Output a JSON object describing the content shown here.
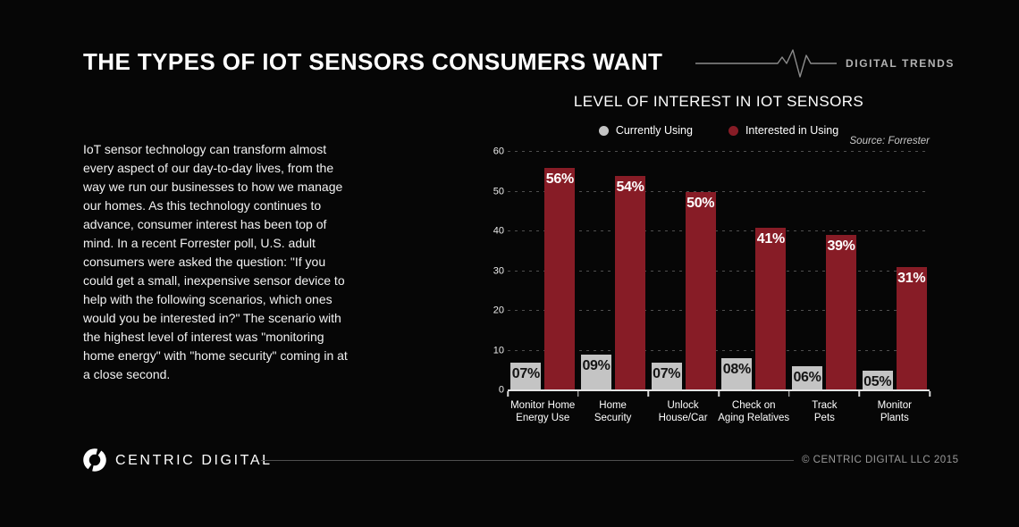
{
  "header": {
    "title": "THE TYPES OF IOT SENSORS CONSUMERS WANT",
    "brand_label": "DIGITAL TRENDS"
  },
  "intro": {
    "text": "IoT sensor technology can transform almost every aspect of our day-to-day lives, from the way we run our businesses to how we manage our homes. As this technology continues to advance, consumer interest has been top of mind. In a recent Forrester poll, U.S. adult consumers were asked the question: \"If you could get a small, inexpensive sensor device to help with the following scenarios, which ones would you be interested in?\" The scenario with the highest level of interest was \"monitoring home energy\" with \"home security\" coming in at a close second."
  },
  "chart_data": {
    "type": "bar",
    "title": "LEVEL OF INTEREST IN IOT SENSORS",
    "source": "Source:  Forrester",
    "legend_position": "top-center",
    "grid": "horizontal-dashed",
    "ylim": [
      0,
      60
    ],
    "yticks": [
      0,
      10,
      20,
      30,
      40,
      50,
      60
    ],
    "categories": [
      [
        "Monitor Home",
        "Energy Use"
      ],
      [
        "Home",
        "Security"
      ],
      [
        "Unlock",
        "House/Car"
      ],
      [
        "Check on",
        "Aging Relatives"
      ],
      [
        "Track",
        "Pets"
      ],
      [
        "Monitor",
        "Plants"
      ]
    ],
    "series": [
      {
        "name": "Currently Using",
        "color": "#c4c4c4",
        "label_color": "#141414",
        "values": [
          7,
          9,
          7,
          8,
          6,
          5
        ],
        "value_labels": [
          "07%",
          "09%",
          "07%",
          "08%",
          "06%",
          "05%"
        ]
      },
      {
        "name": "Interested in Using",
        "color": "#871c26",
        "label_color": "#ffffff",
        "values": [
          56,
          54,
          50,
          41,
          39,
          31
        ],
        "value_labels": [
          "56%",
          "54%",
          "50%",
          "41%",
          "39%",
          "31%"
        ]
      }
    ]
  },
  "footer": {
    "brand": "CENTRIC DIGITAL",
    "copyright": "© CENTRIC DIGITAL LLC 2015"
  },
  "colors": {
    "background": "#060606",
    "accent_red": "#871c26",
    "bar_gray": "#c4c4c4",
    "gridline": "#4f4f4f",
    "text_primary": "#ffffff",
    "text_muted": "#9a9a9a"
  }
}
